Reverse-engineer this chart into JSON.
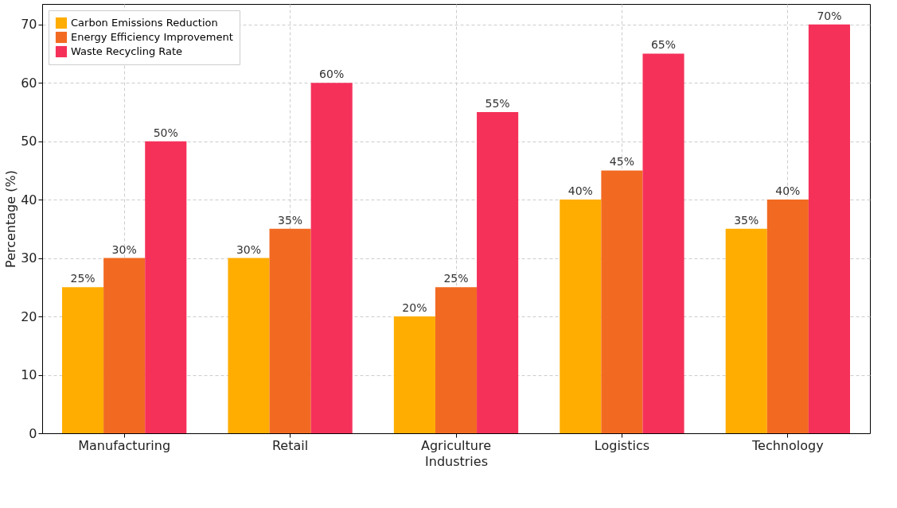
{
  "chart_data": {
    "type": "bar",
    "xlabel": "Industries",
    "ylabel": "Percentage (%)",
    "categories": [
      "Manufacturing",
      "Retail",
      "Agriculture",
      "Logistics",
      "Technology"
    ],
    "series": [
      {
        "name": "Carbon Emissions Reduction",
        "color": "#ffad00",
        "values": [
          25,
          30,
          20,
          40,
          35
        ],
        "value_labels": [
          "25%",
          "30%",
          "20%",
          "40%",
          "35%"
        ]
      },
      {
        "name": "Energy Efficiency Improvement",
        "color": "#f26a21",
        "values": [
          30,
          35,
          25,
          45,
          40
        ],
        "value_labels": [
          "30%",
          "35%",
          "25%",
          "45%",
          "40%"
        ]
      },
      {
        "name": "Waste Recycling Rate",
        "color": "#f5315a",
        "values": [
          50,
          60,
          55,
          65,
          70
        ],
        "value_labels": [
          "50%",
          "60%",
          "55%",
          "65%",
          "70%"
        ]
      }
    ],
    "ylim": [
      0,
      73.5
    ],
    "yticks": [
      0,
      10,
      20,
      30,
      40,
      50,
      60,
      70
    ],
    "grid": true,
    "legend": "top left"
  }
}
